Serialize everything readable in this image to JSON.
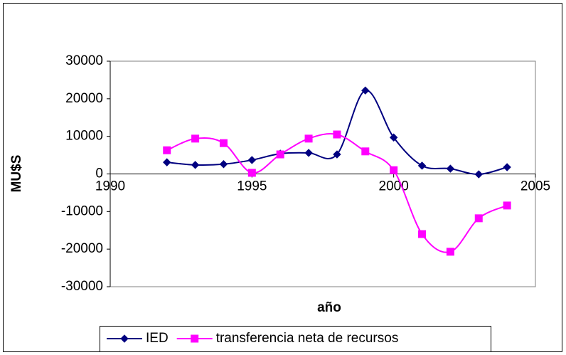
{
  "chart_data": {
    "type": "line",
    "x_label": "año",
    "y_label": "MU$S",
    "x": [
      1992,
      1993,
      1994,
      1995,
      1996,
      1997,
      1998,
      1999,
      2000,
      2001,
      2002,
      2003,
      2004
    ],
    "series": [
      {
        "name": "IED",
        "color": "#000080",
        "marker": "diamond",
        "values": [
          3100,
          2400,
          2600,
          3700,
          5400,
          5600,
          5200,
          22200,
          9700,
          2200,
          1400,
          -100,
          1800
        ]
      },
      {
        "name": "transferencia neta de recursos",
        "color": "#ff00ff",
        "marker": "square",
        "values": [
          6300,
          9400,
          8200,
          300,
          5200,
          9400,
          10500,
          6000,
          1000,
          -16000,
          -20700,
          -11800,
          -8400
        ]
      }
    ],
    "xlim": [
      1990,
      2005
    ],
    "xticks": [
      1990,
      1995,
      2000,
      2005
    ],
    "ylim": [
      -30000,
      30000
    ],
    "yticks": [
      -30000,
      -20000,
      -10000,
      0,
      10000,
      20000,
      30000
    ],
    "smooth": true,
    "grid": false,
    "legend": "bottom"
  }
}
